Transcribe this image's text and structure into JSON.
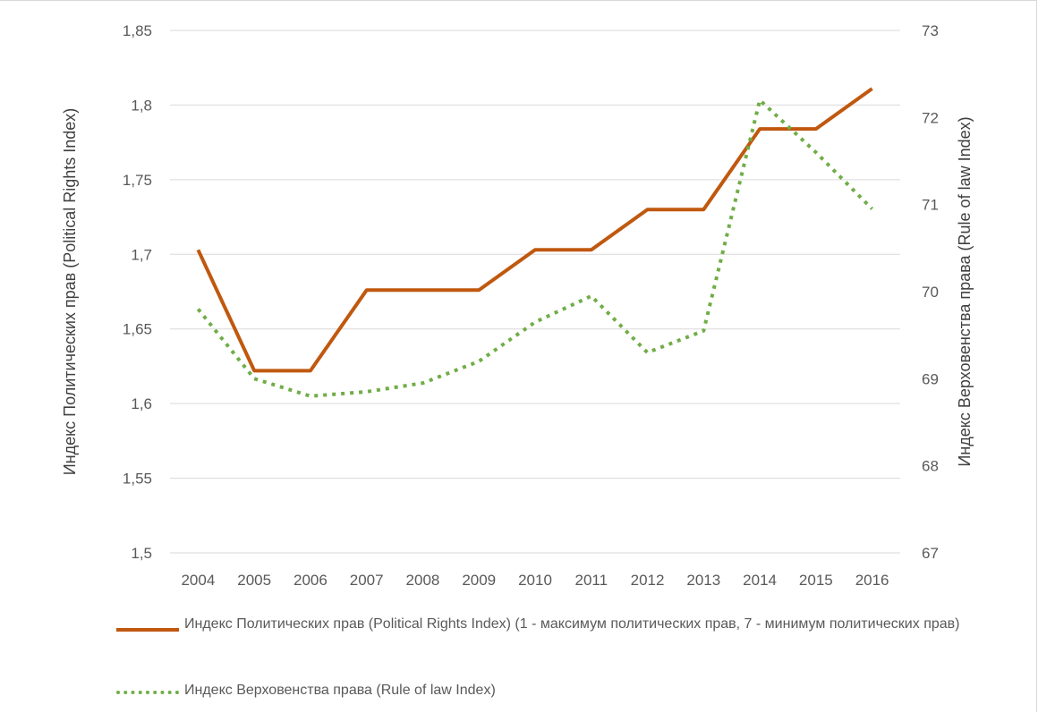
{
  "chart_data": {
    "type": "line",
    "x": [
      "2004",
      "2005",
      "2006",
      "2007",
      "2008",
      "2009",
      "2010",
      "2011",
      "2012",
      "2013",
      "2014",
      "2015",
      "2016"
    ],
    "series": [
      {
        "name": "Индекс Политических прав (Political Rights Index) (1 - максимум политических прав, 7 - минимум политических прав)",
        "axis": "left",
        "color": "#c0580f",
        "style": "solid",
        "values": [
          1.703,
          1.622,
          1.622,
          1.676,
          1.676,
          1.676,
          1.703,
          1.703,
          1.73,
          1.73,
          1.784,
          1.784,
          1.811
        ]
      },
      {
        "name": "Индекс Верховенства права (Rule of law Index)",
        "axis": "right",
        "color": "#70ad47",
        "style": "dotted",
        "values": [
          69.8,
          69.0,
          68.8,
          68.85,
          68.95,
          69.2,
          69.65,
          69.95,
          69.3,
          69.55,
          72.2,
          71.6,
          70.95
        ]
      }
    ],
    "ylabel": "Индекс Политических прав (Political Rights Index)",
    "y2label": "Индекс Верховенства права (Rule of law Index)",
    "ylim": [
      1.5,
      1.85
    ],
    "y2lim": [
      67,
      73
    ],
    "yticks": [
      "1,5",
      "1,55",
      "1,6",
      "1,65",
      "1,7",
      "1,75",
      "1,8",
      "1,85"
    ],
    "y2ticks": [
      "67",
      "68",
      "69",
      "70",
      "71",
      "72",
      "73"
    ],
    "grid": true,
    "legend": "bottom"
  }
}
